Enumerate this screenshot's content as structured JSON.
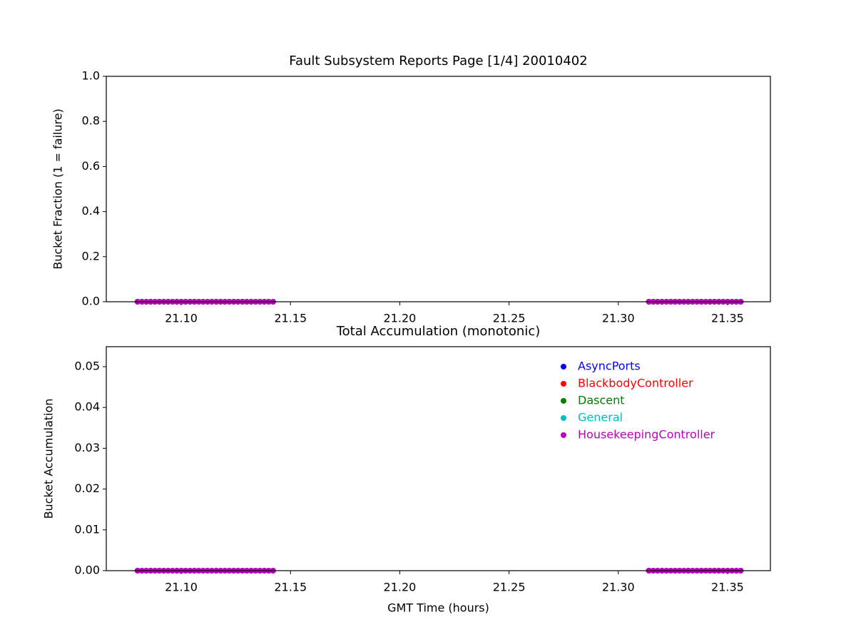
{
  "chart_data": [
    {
      "type": "scatter",
      "title": "Fault Subsystem Reports Page [1/4] 20010402",
      "y_label": "Bucket Fraction (1 = failure)",
      "x": [
        21.08,
        21.082,
        21.084,
        21.086,
        21.088,
        21.09,
        21.092,
        21.094,
        21.096,
        21.098,
        21.1,
        21.102,
        21.104,
        21.106,
        21.108,
        21.11,
        21.112,
        21.114,
        21.116,
        21.118,
        21.12,
        21.122,
        21.124,
        21.126,
        21.128,
        21.13,
        21.132,
        21.134,
        21.136,
        21.138,
        21.14,
        21.142,
        21.314,
        21.316,
        21.318,
        21.32,
        21.322,
        21.324,
        21.326,
        21.328,
        21.33,
        21.332,
        21.334,
        21.336,
        21.338,
        21.34,
        21.342,
        21.344,
        21.346,
        21.348,
        21.35,
        21.352,
        21.354,
        21.356
      ],
      "series": [
        {
          "color": "#0000ff",
          "values": [
            0,
            0,
            0,
            0,
            0,
            0,
            0,
            0,
            0,
            0,
            0,
            0,
            0,
            0,
            0,
            0,
            0,
            0,
            0,
            0,
            0,
            0,
            0,
            0,
            0,
            0,
            0,
            0,
            0,
            0,
            0,
            0,
            0,
            0,
            0,
            0,
            0,
            0,
            0,
            0,
            0,
            0,
            0,
            0,
            0,
            0,
            0,
            0,
            0,
            0,
            0,
            0,
            0,
            0
          ]
        },
        {
          "color": "#ff0000",
          "values": [
            0,
            0,
            0,
            0,
            0,
            0,
            0,
            0,
            0,
            0,
            0,
            0,
            0,
            0,
            0,
            0,
            0,
            0,
            0,
            0,
            0,
            0,
            0,
            0,
            0,
            0,
            0,
            0,
            0,
            0,
            0,
            0,
            0,
            0,
            0,
            0,
            0,
            0,
            0,
            0,
            0,
            0,
            0,
            0,
            0,
            0,
            0,
            0,
            0,
            0,
            0,
            0,
            0,
            0
          ]
        },
        {
          "color": "#008000",
          "values": [
            0,
            0,
            0,
            0,
            0,
            0,
            0,
            0,
            0,
            0,
            0,
            0,
            0,
            0,
            0,
            0,
            0,
            0,
            0,
            0,
            0,
            0,
            0,
            0,
            0,
            0,
            0,
            0,
            0,
            0,
            0,
            0,
            0,
            0,
            0,
            0,
            0,
            0,
            0,
            0,
            0,
            0,
            0,
            0,
            0,
            0,
            0,
            0,
            0,
            0,
            0,
            0,
            0,
            0
          ]
        },
        {
          "color": "#00bfbf",
          "values": [
            0,
            0,
            0,
            0,
            0,
            0,
            0,
            0,
            0,
            0,
            0,
            0,
            0,
            0,
            0,
            0,
            0,
            0,
            0,
            0,
            0,
            0,
            0,
            0,
            0,
            0,
            0,
            0,
            0,
            0,
            0,
            0,
            0,
            0,
            0,
            0,
            0,
            0,
            0,
            0,
            0,
            0,
            0,
            0,
            0,
            0,
            0,
            0,
            0,
            0,
            0,
            0,
            0,
            0
          ]
        },
        {
          "color": "#bf00bf",
          "values": [
            0,
            0,
            0,
            0,
            0,
            0,
            0,
            0,
            0,
            0,
            0,
            0,
            0,
            0,
            0,
            0,
            0,
            0,
            0,
            0,
            0,
            0,
            0,
            0,
            0,
            0,
            0,
            0,
            0,
            0,
            0,
            0,
            0,
            0,
            0,
            0,
            0,
            0,
            0,
            0,
            0,
            0,
            0,
            0,
            0,
            0,
            0,
            0,
            0,
            0,
            0,
            0,
            0,
            0
          ]
        }
      ],
      "xlim": [
        21.0657,
        21.3696
      ],
      "xticks": [
        {
          "value": 21.1,
          "label": "21.10"
        },
        21.15,
        {
          "value": 21.2,
          "label": "21.20"
        },
        21.25,
        {
          "value": 21.3,
          "label": "21.30"
        },
        21.35
      ],
      "ylim": [
        0,
        1
      ],
      "yticks": [
        {
          "value": 0,
          "label": "0.0"
        },
        0.2,
        0.4,
        0.6,
        0.8,
        {
          "value": 1,
          "label": "1.0"
        }
      ]
    },
    {
      "type": "scatter",
      "title": "Total Accumulation (monotonic)",
      "x_label": "GMT Time (hours)",
      "y_label": "Bucket Accumulation",
      "legend": "upper right",
      "x": [
        21.08,
        21.082,
        21.084,
        21.086,
        21.088,
        21.09,
        21.092,
        21.094,
        21.096,
        21.098,
        21.1,
        21.102,
        21.104,
        21.106,
        21.108,
        21.11,
        21.112,
        21.114,
        21.116,
        21.118,
        21.12,
        21.122,
        21.124,
        21.126,
        21.128,
        21.13,
        21.132,
        21.134,
        21.136,
        21.138,
        21.14,
        21.142,
        21.314,
        21.316,
        21.318,
        21.32,
        21.322,
        21.324,
        21.326,
        21.328,
        21.33,
        21.332,
        21.334,
        21.336,
        21.338,
        21.34,
        21.342,
        21.344,
        21.346,
        21.348,
        21.35,
        21.352,
        21.354,
        21.356
      ],
      "series": [
        {
          "name": "AsyncPorts",
          "color": "#0000ff",
          "values": [
            0,
            0,
            0,
            0,
            0,
            0,
            0,
            0,
            0,
            0,
            0,
            0,
            0,
            0,
            0,
            0,
            0,
            0,
            0,
            0,
            0,
            0,
            0,
            0,
            0,
            0,
            0,
            0,
            0,
            0,
            0,
            0,
            0,
            0,
            0,
            0,
            0,
            0,
            0,
            0,
            0,
            0,
            0,
            0,
            0,
            0,
            0,
            0,
            0,
            0,
            0,
            0,
            0,
            0
          ]
        },
        {
          "name": "BlackbodyController",
          "color": "#ff0000",
          "values": [
            0,
            0,
            0,
            0,
            0,
            0,
            0,
            0,
            0,
            0,
            0,
            0,
            0,
            0,
            0,
            0,
            0,
            0,
            0,
            0,
            0,
            0,
            0,
            0,
            0,
            0,
            0,
            0,
            0,
            0,
            0,
            0,
            0,
            0,
            0,
            0,
            0,
            0,
            0,
            0,
            0,
            0,
            0,
            0,
            0,
            0,
            0,
            0,
            0,
            0,
            0,
            0,
            0,
            0
          ]
        },
        {
          "name": "Dascent",
          "color": "#008000",
          "values": [
            0,
            0,
            0,
            0,
            0,
            0,
            0,
            0,
            0,
            0,
            0,
            0,
            0,
            0,
            0,
            0,
            0,
            0,
            0,
            0,
            0,
            0,
            0,
            0,
            0,
            0,
            0,
            0,
            0,
            0,
            0,
            0,
            0,
            0,
            0,
            0,
            0,
            0,
            0,
            0,
            0,
            0,
            0,
            0,
            0,
            0,
            0,
            0,
            0,
            0,
            0,
            0,
            0,
            0
          ]
        },
        {
          "name": "General",
          "color": "#00bfbf",
          "values": [
            0,
            0,
            0,
            0,
            0,
            0,
            0,
            0,
            0,
            0,
            0,
            0,
            0,
            0,
            0,
            0,
            0,
            0,
            0,
            0,
            0,
            0,
            0,
            0,
            0,
            0,
            0,
            0,
            0,
            0,
            0,
            0,
            0,
            0,
            0,
            0,
            0,
            0,
            0,
            0,
            0,
            0,
            0,
            0,
            0,
            0,
            0,
            0,
            0,
            0,
            0,
            0,
            0,
            0
          ]
        },
        {
          "name": "HousekeepingController",
          "color": "#bf00bf",
          "values": [
            0,
            0,
            0,
            0,
            0,
            0,
            0,
            0,
            0,
            0,
            0,
            0,
            0,
            0,
            0,
            0,
            0,
            0,
            0,
            0,
            0,
            0,
            0,
            0,
            0,
            0,
            0,
            0,
            0,
            0,
            0,
            0,
            0,
            0,
            0,
            0,
            0,
            0,
            0,
            0,
            0,
            0,
            0,
            0,
            0,
            0,
            0,
            0,
            0,
            0,
            0,
            0,
            0,
            0
          ]
        }
      ],
      "xlim": [
        21.0657,
        21.3696
      ],
      "xticks": [
        {
          "value": 21.1,
          "label": "21.10"
        },
        21.15,
        {
          "value": 21.2,
          "label": "21.20"
        },
        21.25,
        {
          "value": 21.3,
          "label": "21.30"
        },
        21.35
      ],
      "ylim": [
        0,
        0.0549
      ],
      "yticks": [
        {
          "value": 0,
          "label": "0.00"
        },
        0.01,
        0.02,
        0.03,
        0.04,
        0.05
      ]
    }
  ]
}
